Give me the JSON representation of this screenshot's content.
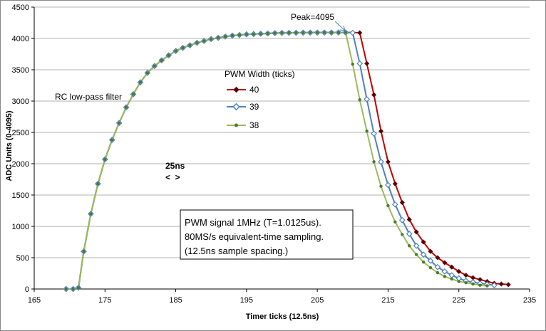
{
  "chart_data": {
    "type": "line",
    "title": "",
    "xlabel": "Timer ticks (12.5ns)",
    "ylabel": "ADC Units (0-4095)",
    "xlim": [
      165,
      235
    ],
    "ylim": [
      0,
      4500
    ],
    "x_ticks": [
      165,
      175,
      185,
      195,
      205,
      215,
      225,
      235
    ],
    "y_ticks": [
      0,
      500,
      1000,
      1500,
      2000,
      2500,
      3000,
      3500,
      4000,
      4500
    ],
    "grid": "horizontal",
    "legend": {
      "title": "PWM Width (ticks)",
      "placement": "center",
      "entries": [
        "40",
        "39",
        "38"
      ]
    },
    "annotations": {
      "peak": "Peak=4095",
      "filter": "RC low-pass filter",
      "spacing_label": "25ns",
      "spacing_arrows": "<  >",
      "info_lines": [
        "PWM signal 1MHz (T=1.0125us).",
        "80MS/s equivalent-time sampling.",
        "(12.5ns sample spacing.)"
      ]
    },
    "colors": {
      "40": "#c00000",
      "39": "#4f81bd",
      "38": "#9bbb59",
      "marker_40": "#5a0000",
      "marker_39": "#4f81bd",
      "marker_38": "#4a7a30"
    },
    "rise": {
      "x": [
        169.5,
        170.5,
        171.25,
        172,
        173,
        174,
        175,
        176,
        177,
        178,
        179,
        180,
        181,
        182,
        183,
        184,
        185,
        186,
        187,
        188,
        189,
        190,
        191,
        192,
        193,
        194,
        195,
        196,
        197,
        198,
        199,
        200,
        201,
        202,
        203,
        204,
        205,
        206,
        207,
        208,
        209
      ],
      "y": [
        0,
        0,
        20,
        600,
        1200,
        1680,
        2070,
        2380,
        2650,
        2900,
        3110,
        3300,
        3450,
        3560,
        3650,
        3730,
        3800,
        3850,
        3890,
        3930,
        3960,
        3990,
        4010,
        4030,
        4045,
        4055,
        4065,
        4070,
        4075,
        4080,
        4085,
        4088,
        4090,
        4091,
        4092,
        4093,
        4093,
        4094,
        4094,
        4095,
        4095
      ]
    },
    "series": [
      {
        "name": "40",
        "x": [
          209,
          210,
          211,
          212,
          213,
          214,
          215,
          216,
          217,
          218,
          219,
          220,
          221,
          222,
          223,
          224,
          225,
          226,
          227,
          228,
          229,
          230,
          231,
          232
        ],
        "values": [
          4095,
          4095,
          4090,
          3600,
          3100,
          2520,
          2030,
          1680,
          1380,
          1110,
          910,
          750,
          600,
          500,
          420,
          350,
          280,
          220,
          180,
          150,
          120,
          90,
          80,
          70
        ]
      },
      {
        "name": "39",
        "x": [
          209,
          210,
          211,
          212,
          213,
          214,
          215,
          216,
          217,
          218,
          219,
          220,
          221,
          222,
          223,
          224,
          225,
          226,
          227,
          228,
          229,
          230
        ],
        "values": [
          4095,
          4090,
          3600,
          3030,
          2480,
          2030,
          1660,
          1350,
          1100,
          880,
          690,
          550,
          450,
          350,
          280,
          220,
          170,
          130,
          110,
          90,
          75,
          60
        ]
      },
      {
        "name": "38",
        "x": [
          209,
          210,
          211,
          212,
          213,
          214,
          215,
          216,
          217,
          218,
          219,
          220,
          221,
          222,
          223,
          224,
          225,
          226,
          227,
          228,
          229
        ],
        "values": [
          4095,
          3590,
          3020,
          2520,
          2030,
          1640,
          1330,
          1070,
          870,
          690,
          550,
          430,
          340,
          260,
          200,
          160,
          120,
          100,
          80,
          60,
          50
        ]
      }
    ]
  }
}
